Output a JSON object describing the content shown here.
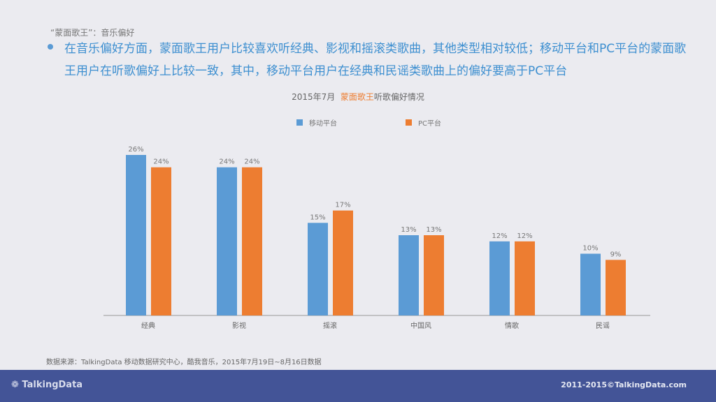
{
  "header": {
    "subtitle": "“蒙面歌王”：音乐偏好",
    "paragraph": "在音乐偏好方面，蒙面歌王用户比较喜欢听经典、影视和摇滚类歌曲，其他类型相对较低；移动平台和PC平台的蒙面歌王用户在听歌偏好上比较一致，其中，移动平台用户在经典和民谣类歌曲上的偏好要高于PC平台"
  },
  "chart_data": {
    "type": "bar",
    "title_prefix": "2015年7月",
    "title_highlight": "蒙面歌王",
    "title_suffix": "听歌偏好情况",
    "categories": [
      "经典",
      "影视",
      "摇滚",
      "中国风",
      "情歌",
      "民谣"
    ],
    "series": [
      {
        "name": "移动平台",
        "color": "#5b9bd5",
        "values": [
          26,
          24,
          15,
          13,
          12,
          10
        ]
      },
      {
        "name": "PC平台",
        "color": "#ed7d31",
        "values": [
          24,
          24,
          17,
          13,
          12,
          9
        ]
      }
    ],
    "value_suffix": "%",
    "ylim": [
      0,
      26
    ],
    "grid": false,
    "legend": "top"
  },
  "source": "数据来源：TalkingData 移动数据研究中心，酷我音乐，2015年7月19日~8月16日数据",
  "footer": {
    "logo": "❁ TalkingData",
    "copyright": "2011-2015©TalkingData.com"
  }
}
